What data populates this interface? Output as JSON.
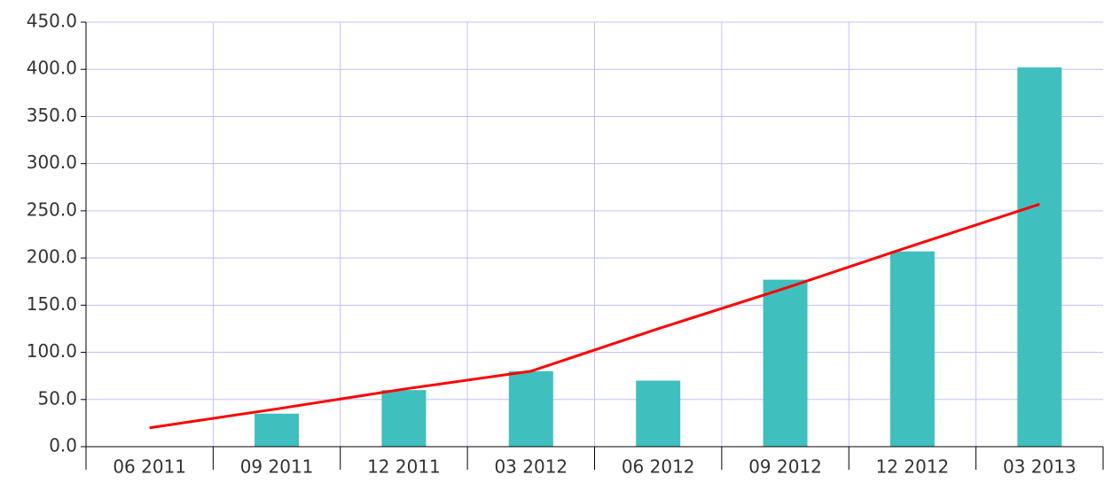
{
  "chart_data": {
    "type": "bar",
    "categories": [
      "06 2011",
      "09 2011",
      "12 2011",
      "03 2012",
      "06 2012",
      "09 2012",
      "12 2012",
      "03 2013"
    ],
    "series": [
      {
        "type": "bar",
        "color": "#40bfbf",
        "values": [
          null,
          35,
          60,
          80,
          70,
          177,
          207,
          402
        ]
      },
      {
        "type": "line",
        "color": "#ff0000",
        "values": [
          20,
          40,
          61,
          80,
          125,
          168,
          213,
          257
        ]
      }
    ],
    "ylim": [
      0,
      450
    ],
    "yticks": [
      {
        "value": 0,
        "label": "0.0"
      },
      {
        "value": 50,
        "label": "50.0"
      },
      {
        "value": 100,
        "label": "100.0"
      },
      {
        "value": 150,
        "label": "150.0"
      },
      {
        "value": 200,
        "label": "200.0"
      },
      {
        "value": 250,
        "label": "250.0"
      },
      {
        "value": 300,
        "label": "300.0"
      },
      {
        "value": 350,
        "label": "350.0"
      },
      {
        "value": 400,
        "label": "400.0"
      },
      {
        "value": 450,
        "label": "450.0"
      }
    ],
    "grid": true,
    "grid_color": "#c0c0ff"
  }
}
